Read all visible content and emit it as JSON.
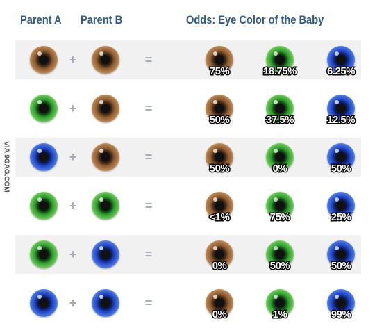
{
  "header": {
    "parent_a": "Parent A",
    "parent_b": "Parent B",
    "odds": "Odds: Eye Color of the Baby"
  },
  "side_label": "VIA 9GAG.COM",
  "colors": {
    "header_text": "#2e5a84",
    "row_shade": "#f1f1f1",
    "operator": "#a7aeb8"
  },
  "rows": [
    {
      "parent_a": "brown",
      "parent_b": "brown",
      "plus": "+",
      "equals": "=",
      "odds": [
        {
          "color": "brown",
          "label": "75%"
        },
        {
          "color": "green",
          "label": "18.75%"
        },
        {
          "color": "blue",
          "label": "6.25%"
        }
      ]
    },
    {
      "parent_a": "green",
      "parent_b": "brown",
      "plus": "+",
      "equals": "=",
      "odds": [
        {
          "color": "brown",
          "label": "50%"
        },
        {
          "color": "green",
          "label": "37.5%"
        },
        {
          "color": "blue",
          "label": "12.5%"
        }
      ]
    },
    {
      "parent_a": "blue",
      "parent_b": "brown",
      "plus": "+",
      "equals": "=",
      "odds": [
        {
          "color": "brown",
          "label": "50%"
        },
        {
          "color": "green",
          "label": "0%"
        },
        {
          "color": "blue",
          "label": "50%"
        }
      ]
    },
    {
      "parent_a": "green",
      "parent_b": "green",
      "plus": "+",
      "equals": "=",
      "odds": [
        {
          "color": "brown",
          "label": "<1%"
        },
        {
          "color": "green",
          "label": "75%"
        },
        {
          "color": "blue",
          "label": "25%"
        }
      ]
    },
    {
      "parent_a": "green",
      "parent_b": "blue",
      "plus": "+",
      "equals": "=",
      "odds": [
        {
          "color": "brown",
          "label": "0%"
        },
        {
          "color": "green",
          "label": "50%"
        },
        {
          "color": "blue",
          "label": "50%"
        }
      ]
    },
    {
      "parent_a": "blue",
      "parent_b": "blue",
      "plus": "+",
      "equals": "=",
      "odds": [
        {
          "color": "brown",
          "label": "0%"
        },
        {
          "color": "green",
          "label": "1%"
        },
        {
          "color": "blue",
          "label": "99%"
        }
      ]
    }
  ]
}
